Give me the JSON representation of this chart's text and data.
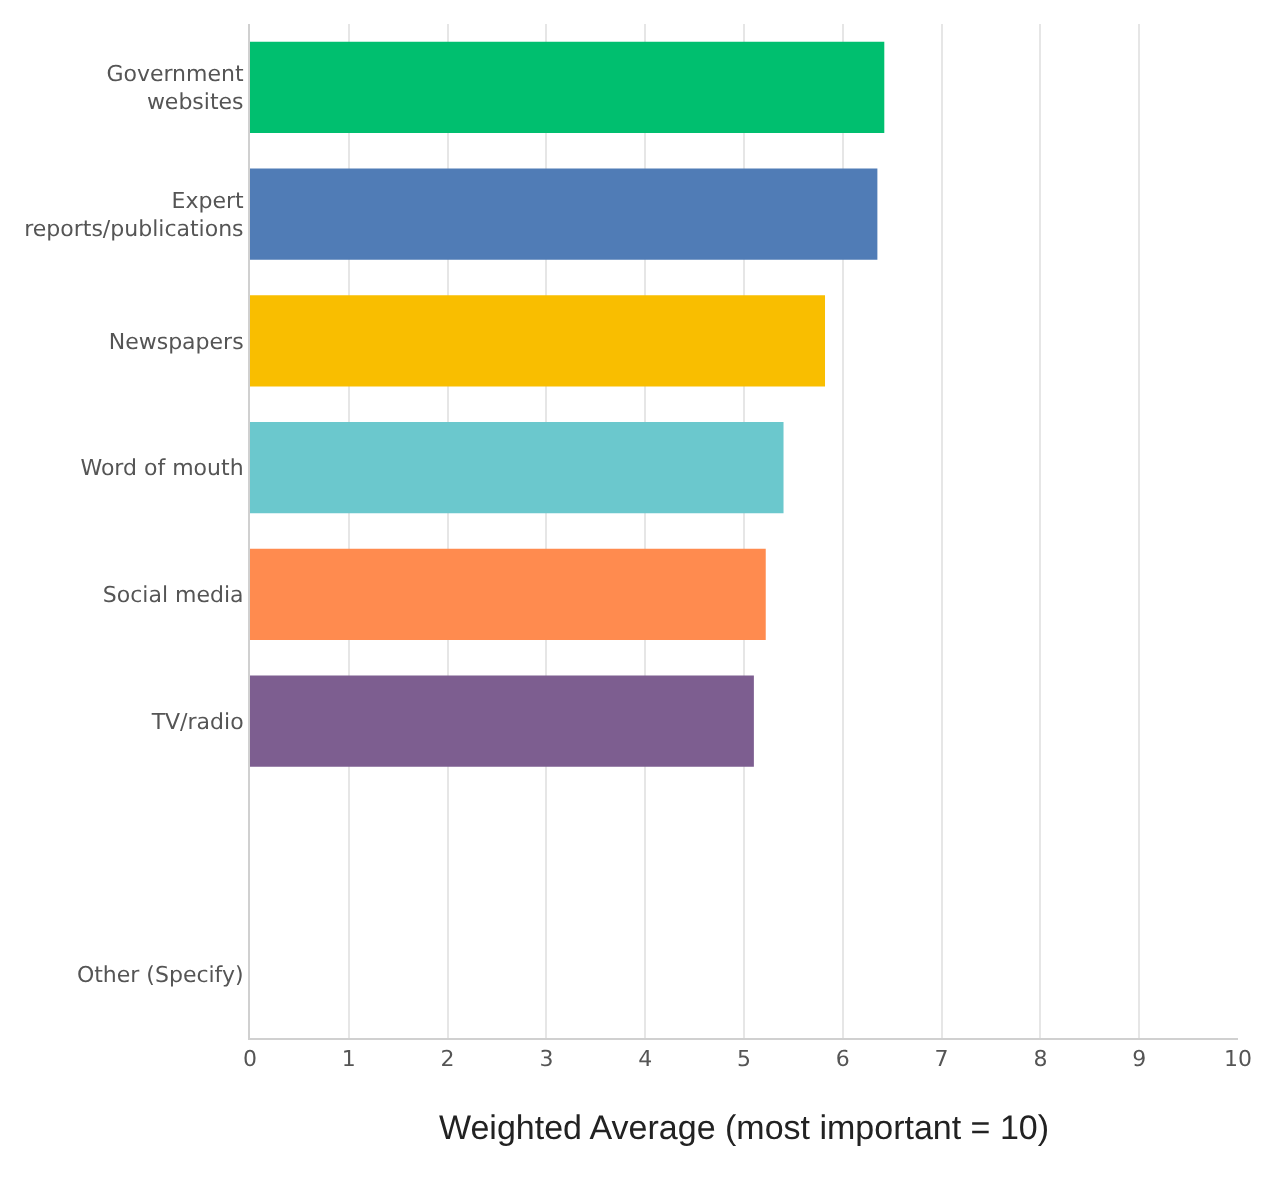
{
  "chart_data": {
    "type": "bar",
    "orientation": "horizontal",
    "xlabel": "Weighted Average (most important = 10)",
    "categories": [
      "Government websites",
      "Expert reports/publications",
      "Newspapers",
      "Word of mouth",
      "Social media",
      "TV/radio",
      null,
      "Other (Specify)"
    ],
    "values": [
      6.42,
      6.35,
      5.82,
      5.4,
      5.22,
      5.1,
      0,
      0
    ],
    "colors": [
      "#00bf6f",
      "#507cb6",
      "#f9be00",
      "#6bc8cd",
      "#ff8b4f",
      "#7d5e90",
      "#cccccc",
      "#cccccc"
    ],
    "xlim": [
      0,
      10
    ],
    "xticks": [
      0,
      1,
      2,
      3,
      4,
      5,
      6,
      7,
      8,
      9,
      10
    ],
    "grid": "x"
  }
}
